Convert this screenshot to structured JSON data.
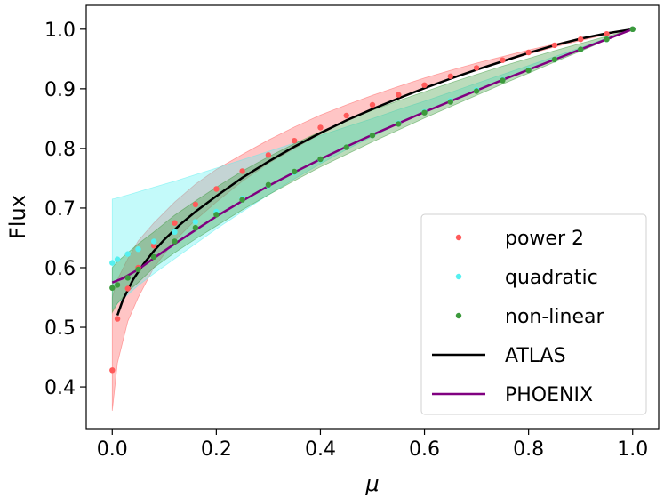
{
  "chart_data": {
    "type": "line",
    "title": "",
    "xlabel": "μ",
    "ylabel": "Flux",
    "xlim": [
      -0.05,
      1.05
    ],
    "ylim": [
      0.33,
      1.04
    ],
    "xticks": [
      "0.0",
      "0.2",
      "0.4",
      "0.6",
      "0.8",
      "1.0"
    ],
    "yticks": [
      "0.4",
      "0.5",
      "0.6",
      "0.7",
      "0.8",
      "0.9",
      "1.0"
    ],
    "grid": false,
    "legend_position": "bottom-right",
    "series": [
      {
        "name": "power 2",
        "kind": "points",
        "color": "#ff5a5a",
        "x": [
          0.0,
          0.01,
          0.03,
          0.05,
          0.08,
          0.12,
          0.16,
          0.2,
          0.25,
          0.3,
          0.35,
          0.4,
          0.45,
          0.5,
          0.55,
          0.6,
          0.65,
          0.7,
          0.75,
          0.8,
          0.85,
          0.9,
          0.95,
          1.0
        ],
        "y": [
          0.428,
          0.514,
          0.565,
          0.6,
          0.637,
          0.675,
          0.706,
          0.732,
          0.762,
          0.789,
          0.813,
          0.835,
          0.855,
          0.873,
          0.89,
          0.906,
          0.921,
          0.935,
          0.948,
          0.961,
          0.973,
          0.983,
          0.992,
          1.0
        ],
        "band_lower": [
          0.36,
          0.44,
          0.51,
          0.55,
          0.6,
          0.645,
          0.68,
          0.71,
          0.745,
          0.775,
          0.8,
          0.824,
          0.846,
          0.865,
          0.883,
          0.9,
          0.916,
          0.931,
          0.945,
          0.958,
          0.97,
          0.981,
          0.991,
          1.0
        ],
        "band_upper": [
          0.55,
          0.58,
          0.615,
          0.645,
          0.675,
          0.71,
          0.74,
          0.765,
          0.79,
          0.814,
          0.836,
          0.856,
          0.873,
          0.889,
          0.904,
          0.918,
          0.931,
          0.943,
          0.954,
          0.965,
          0.975,
          0.985,
          0.993,
          1.0
        ]
      },
      {
        "name": "quadratic",
        "kind": "points",
        "color": "#55f0f0",
        "x": [
          0.0,
          0.01,
          0.03,
          0.05,
          0.08,
          0.12,
          0.16,
          0.2,
          0.25,
          0.3,
          0.35,
          0.4,
          0.45,
          0.5,
          0.55,
          0.6,
          0.65,
          0.7,
          0.75,
          0.8,
          0.85,
          0.9,
          0.95,
          1.0
        ],
        "y": [
          0.608,
          0.614,
          0.623,
          0.631,
          0.644,
          0.66,
          0.677,
          0.694,
          0.716,
          0.738,
          0.76,
          0.781,
          0.802,
          0.822,
          0.842,
          0.861,
          0.88,
          0.898,
          0.915,
          0.932,
          0.949,
          0.966,
          0.983,
          1.0
        ],
        "band_lower": [
          0.53,
          0.54,
          0.555,
          0.57,
          0.59,
          0.615,
          0.64,
          0.665,
          0.694,
          0.722,
          0.749,
          0.774,
          0.798,
          0.82,
          0.841,
          0.861,
          0.88,
          0.898,
          0.915,
          0.932,
          0.949,
          0.966,
          0.983,
          1.0
        ],
        "band_upper": [
          0.715,
          0.717,
          0.722,
          0.727,
          0.735,
          0.745,
          0.756,
          0.767,
          0.781,
          0.795,
          0.809,
          0.822,
          0.836,
          0.85,
          0.865,
          0.879,
          0.894,
          0.909,
          0.924,
          0.939,
          0.954,
          0.969,
          0.985,
          1.0
        ]
      },
      {
        "name": "non-linear",
        "kind": "points",
        "color": "#3c9a3c",
        "x": [
          0.0,
          0.01,
          0.03,
          0.05,
          0.08,
          0.12,
          0.16,
          0.2,
          0.25,
          0.3,
          0.35,
          0.4,
          0.45,
          0.5,
          0.55,
          0.6,
          0.65,
          0.7,
          0.75,
          0.8,
          0.85,
          0.9,
          0.95,
          1.0
        ],
        "y": [
          0.566,
          0.571,
          0.583,
          0.597,
          0.618,
          0.644,
          0.667,
          0.689,
          0.714,
          0.739,
          0.761,
          0.782,
          0.802,
          0.822,
          0.841,
          0.86,
          0.878,
          0.896,
          0.914,
          0.931,
          0.949,
          0.966,
          0.983,
          1.0
        ],
        "band_lower": [
          0.525,
          0.54,
          0.56,
          0.575,
          0.6,
          0.625,
          0.648,
          0.67,
          0.697,
          0.722,
          0.746,
          0.769,
          0.79,
          0.811,
          0.831,
          0.851,
          0.87,
          0.889,
          0.908,
          0.926,
          0.945,
          0.963,
          0.982,
          1.0
        ],
        "band_upper": [
          0.6,
          0.61,
          0.625,
          0.64,
          0.66,
          0.688,
          0.712,
          0.735,
          0.762,
          0.786,
          0.808,
          0.828,
          0.847,
          0.864,
          0.88,
          0.895,
          0.91,
          0.924,
          0.938,
          0.951,
          0.964,
          0.976,
          0.988,
          1.0
        ]
      },
      {
        "name": "ATLAS",
        "kind": "line",
        "color": "#000000",
        "x": [
          0.01,
          0.02,
          0.04,
          0.06,
          0.08,
          0.1,
          0.13,
          0.16,
          0.2,
          0.25,
          0.3,
          0.35,
          0.4,
          0.45,
          0.5,
          0.55,
          0.6,
          0.65,
          0.7,
          0.75,
          0.8,
          0.85,
          0.9,
          0.95,
          1.0
        ],
        "y": [
          0.52,
          0.545,
          0.58,
          0.606,
          0.628,
          0.647,
          0.672,
          0.694,
          0.72,
          0.751,
          0.778,
          0.803,
          0.826,
          0.847,
          0.866,
          0.884,
          0.901,
          0.917,
          0.932,
          0.946,
          0.96,
          0.973,
          0.984,
          0.993,
          1.0
        ]
      },
      {
        "name": "PHOENIX",
        "kind": "line",
        "color": "#800080",
        "x": [
          0.0,
          0.02,
          0.05,
          0.08,
          0.12,
          0.16,
          0.2,
          0.25,
          0.3,
          0.35,
          0.4,
          0.45,
          0.5,
          0.55,
          0.6,
          0.65,
          0.7,
          0.75,
          0.8,
          0.85,
          0.9,
          0.95,
          1.0
        ],
        "y": [
          0.575,
          0.582,
          0.597,
          0.616,
          0.64,
          0.663,
          0.686,
          0.712,
          0.737,
          0.76,
          0.782,
          0.803,
          0.823,
          0.842,
          0.861,
          0.879,
          0.897,
          0.915,
          0.932,
          0.949,
          0.966,
          0.983,
          1.0
        ]
      }
    ]
  }
}
